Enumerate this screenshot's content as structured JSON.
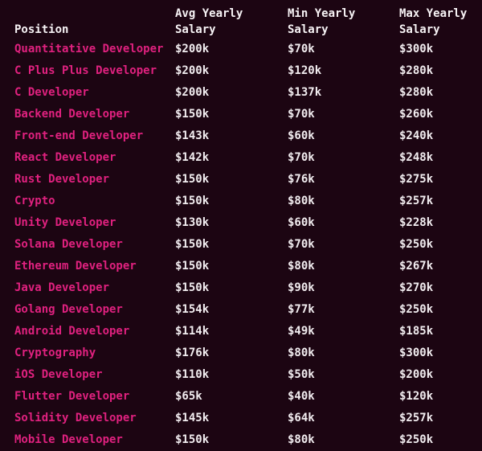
{
  "page": {
    "background_color": "#1c0512"
  },
  "colors": {
    "position_link": "#e0217f",
    "value_text": "#f2edf0",
    "header_text": "#f7f3f5"
  },
  "table": {
    "columns": [
      {
        "label": "Position"
      },
      {
        "label": "Avg Yearly Salary"
      },
      {
        "label": "Min Yearly Salary"
      },
      {
        "label": "Max Yearly Salary"
      }
    ]
  },
  "chart_data": {
    "type": "table",
    "columns": [
      "Position",
      "Avg Yearly Salary",
      "Min Yearly Salary",
      "Max Yearly Salary"
    ],
    "rows": [
      [
        "Quantitative Developer",
        "$200k",
        "$70k",
        "$300k"
      ],
      [
        "C Plus Plus Developer",
        "$200k",
        "$120k",
        "$280k"
      ],
      [
        "C Developer",
        "$200k",
        "$137k",
        "$280k"
      ],
      [
        "Backend Developer",
        "$150k",
        "$70k",
        "$260k"
      ],
      [
        "Front-end Developer",
        "$143k",
        "$60k",
        "$240k"
      ],
      [
        "React Developer",
        "$142k",
        "$70k",
        "$248k"
      ],
      [
        "Rust Developer",
        "$150k",
        "$76k",
        "$275k"
      ],
      [
        "Crypto",
        "$150k",
        "$80k",
        "$257k"
      ],
      [
        "Unity Developer",
        "$130k",
        "$60k",
        "$228k"
      ],
      [
        "Solana Developer",
        "$150k",
        "$70k",
        "$250k"
      ],
      [
        "Ethereum Developer",
        "$150k",
        "$80k",
        "$267k"
      ],
      [
        "Java Developer",
        "$150k",
        "$90k",
        "$270k"
      ],
      [
        "Golang Developer",
        "$154k",
        "$77k",
        "$250k"
      ],
      [
        "Android Developer",
        "$114k",
        "$49k",
        "$185k"
      ],
      [
        "Cryptography",
        "$176k",
        "$80k",
        "$300k"
      ],
      [
        "iOS Developer",
        "$110k",
        "$50k",
        "$200k"
      ],
      [
        "Flutter Developer",
        "$65k",
        "$40k",
        "$120k"
      ],
      [
        "Solidity Developer",
        "$145k",
        "$64k",
        "$257k"
      ],
      [
        "Mobile Developer",
        "$150k",
        "$80k",
        "$250k"
      ]
    ]
  }
}
